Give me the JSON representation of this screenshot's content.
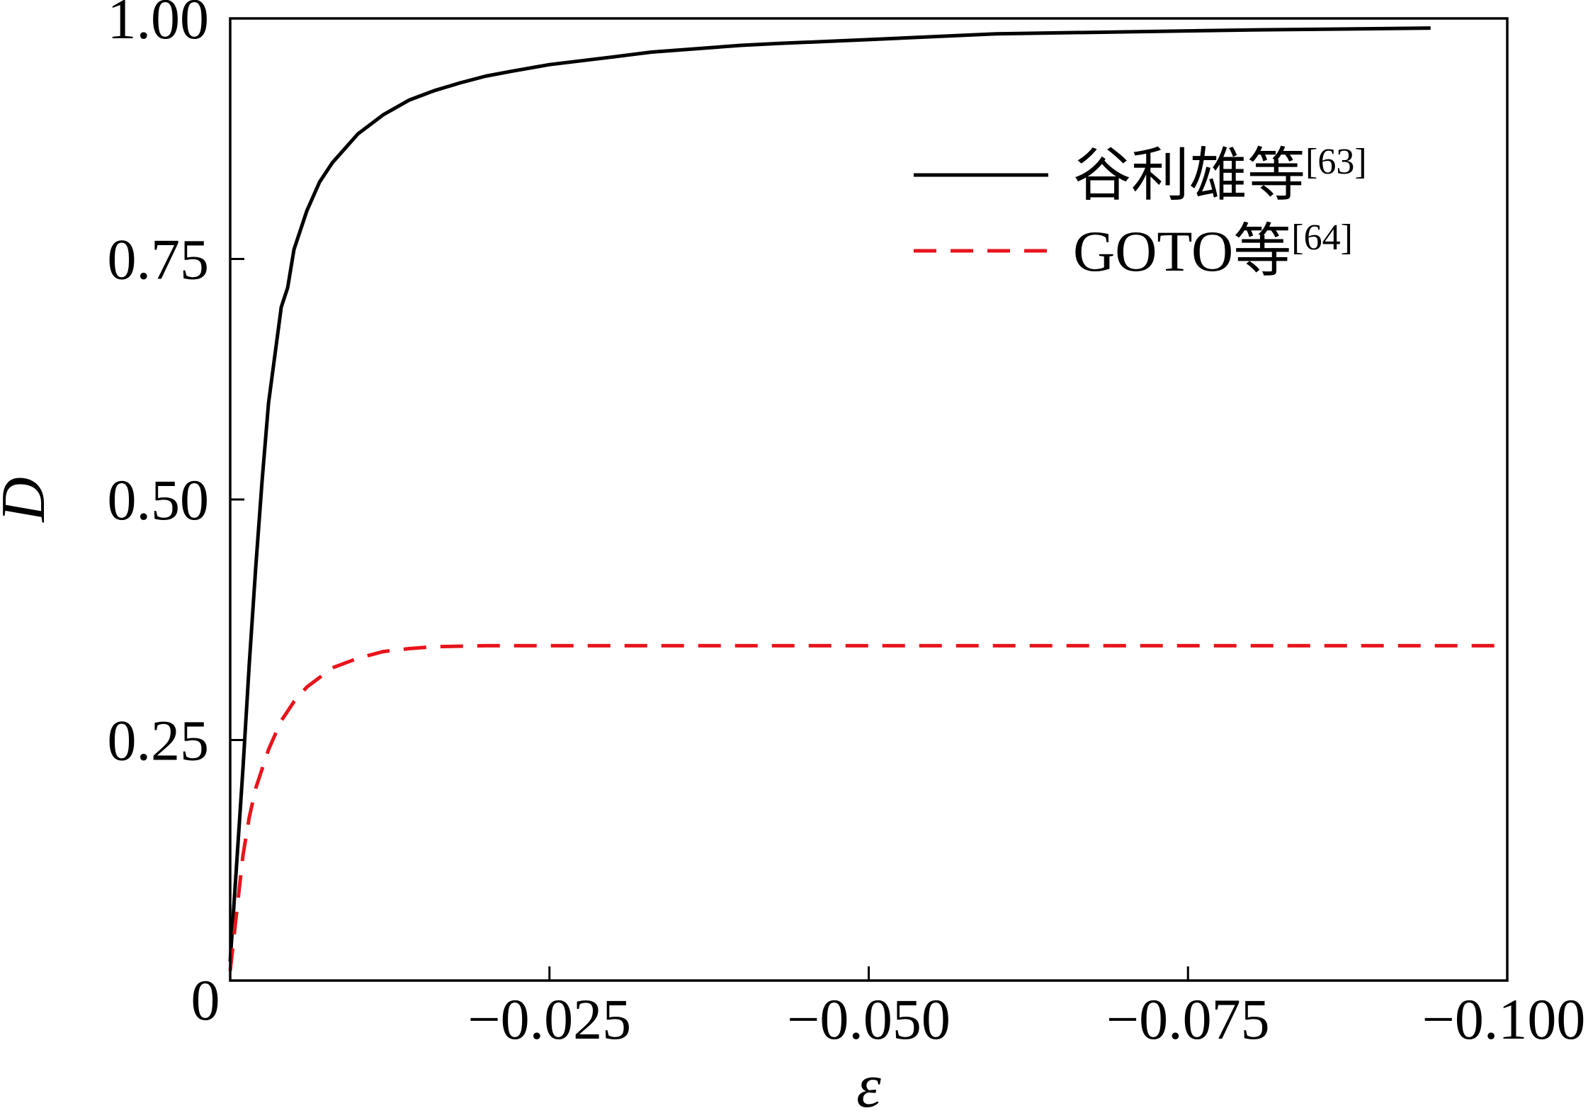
{
  "chart_data": {
    "type": "line",
    "xlabel": "ε",
    "ylabel": "D",
    "xlim": [
      0,
      -0.1
    ],
    "ylim": [
      0,
      1.0
    ],
    "x_ticks": [
      0,
      -0.025,
      -0.05,
      -0.075,
      -0.1
    ],
    "x_tick_labels": [
      "0",
      "−0.025",
      "−0.050",
      "−0.075",
      "−0.100"
    ],
    "y_ticks": [
      0.25,
      0.5,
      0.75,
      1.0
    ],
    "y_tick_labels": [
      "0.25",
      "0.50",
      "0.75",
      "1.00"
    ],
    "grid": false,
    "legend_position": "upper-right",
    "series": [
      {
        "name": "谷利雄等",
        "ref": "[63]",
        "color": "#000000",
        "style": "solid",
        "x": [
          0,
          -0.0005,
          -0.001,
          -0.0015,
          -0.002,
          -0.0025,
          -0.003,
          -0.0035,
          -0.004,
          -0.0045,
          -0.005,
          -0.006,
          -0.007,
          -0.008,
          -0.009,
          -0.01,
          -0.012,
          -0.014,
          -0.016,
          -0.018,
          -0.02,
          -0.022,
          -0.025,
          -0.03,
          -0.033,
          -0.04,
          -0.043,
          -0.05,
          -0.06,
          -0.07,
          -0.08,
          -0.094
        ],
        "y": [
          0.02,
          0.12,
          0.22,
          0.33,
          0.43,
          0.52,
          0.6,
          0.65,
          0.7,
          0.72,
          0.76,
          0.8,
          0.83,
          0.85,
          0.865,
          0.88,
          0.9,
          0.915,
          0.925,
          0.933,
          0.94,
          0.945,
          0.952,
          0.96,
          0.965,
          0.972,
          0.974,
          0.978,
          0.984,
          0.986,
          0.988,
          0.99
        ]
      },
      {
        "name": "GOTO等",
        "ref": "[64]",
        "color": "#e8141c",
        "style": "dashed",
        "x": [
          0,
          -0.0005,
          -0.001,
          -0.0015,
          -0.002,
          -0.003,
          -0.004,
          -0.005,
          -0.006,
          -0.007,
          -0.008,
          -0.01,
          -0.012,
          -0.014,
          -0.016,
          -0.02,
          -0.03,
          -0.05,
          -0.075,
          -0.1
        ],
        "y": [
          0.01,
          0.07,
          0.13,
          0.17,
          0.2,
          0.24,
          0.27,
          0.29,
          0.305,
          0.315,
          0.325,
          0.335,
          0.342,
          0.345,
          0.347,
          0.348,
          0.348,
          0.348,
          0.348,
          0.348
        ]
      }
    ]
  }
}
